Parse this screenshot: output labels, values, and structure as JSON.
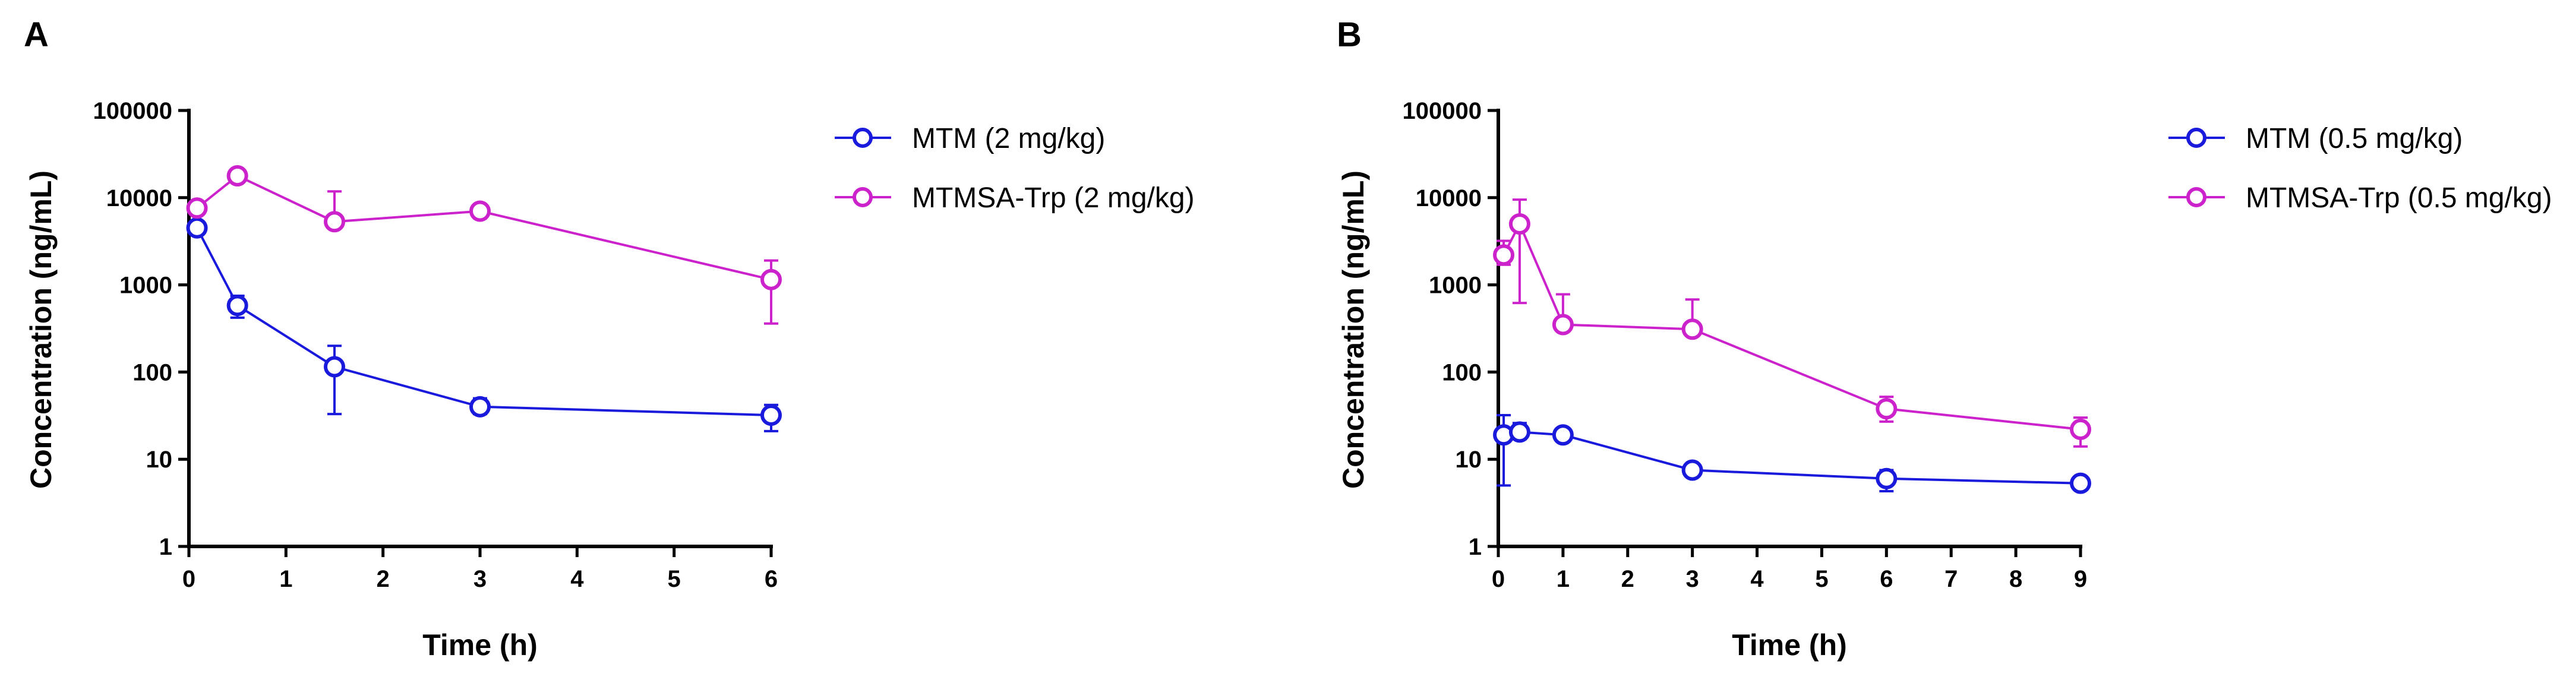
{
  "chart_data": [
    {
      "type": "line",
      "panel_label": "A",
      "xlabel": "Time (h)",
      "ylabel": "Concentration (ng/mL)",
      "yscale": "log",
      "xlim": [
        0,
        6
      ],
      "ylim": [
        1,
        100000
      ],
      "x_ticks": [
        "0",
        "1",
        "2",
        "3",
        "4",
        "5",
        "6"
      ],
      "y_ticks": [
        "1",
        "10",
        "100",
        "1000",
        "10000",
        "100000"
      ],
      "legend_position": "right",
      "series": [
        {
          "name": "MTM (2 mg/kg)",
          "color": "#1a1adc",
          "x": [
            0.083,
            0.5,
            1.5,
            3,
            6
          ],
          "values": [
            4500,
            580,
            115,
            40,
            32
          ],
          "err_upper": [
            5200,
            750,
            200,
            50,
            42
          ],
          "err_lower": [
            3900,
            420,
            33,
            33,
            21
          ]
        },
        {
          "name": "MTMSA-Trp (2 mg/kg)",
          "color": "#cc22cc",
          "x": [
            0.083,
            0.5,
            1.5,
            3,
            6
          ],
          "values": [
            7600,
            17800,
            5300,
            7000,
            1150
          ],
          "err_upper": [
            8100,
            19500,
            11800,
            8300,
            1900
          ],
          "err_lower": [
            7100,
            16200,
            5300,
            5800,
            360
          ]
        }
      ]
    },
    {
      "type": "line",
      "panel_label": "B",
      "xlabel": "Time (h)",
      "ylabel": "Concentration (ng/mL)",
      "yscale": "log",
      "xlim": [
        0,
        9
      ],
      "ylim": [
        1,
        100000
      ],
      "x_ticks": [
        "0",
        "1",
        "2",
        "3",
        "4",
        "5",
        "6",
        "7",
        "8",
        "9"
      ],
      "y_ticks": [
        "1",
        "10",
        "100",
        "1000",
        "10000",
        "100000"
      ],
      "legend_position": "right",
      "series": [
        {
          "name": "MTM (0.5 mg/kg)",
          "color": "#1a1adc",
          "x": [
            0.083,
            0.33,
            1,
            3,
            6,
            9
          ],
          "values": [
            19,
            20.5,
            19,
            7.5,
            6,
            5.3
          ],
          "err_upper": [
            32,
            26,
            22,
            8.5,
            7.5,
            6
          ],
          "err_lower": [
            5,
            17,
            17,
            6.8,
            4.3,
            4.6
          ]
        },
        {
          "name": "MTMSA-Trp (0.5 mg/kg)",
          "color": "#cc22cc",
          "x": [
            0.083,
            0.33,
            1,
            3,
            6,
            9
          ],
          "values": [
            2200,
            5000,
            350,
            310,
            38,
            22
          ],
          "err_upper": [
            3200,
            9500,
            780,
            680,
            52,
            30
          ],
          "err_lower": [
            1700,
            620,
            300,
            270,
            27,
            14
          ]
        }
      ]
    }
  ]
}
